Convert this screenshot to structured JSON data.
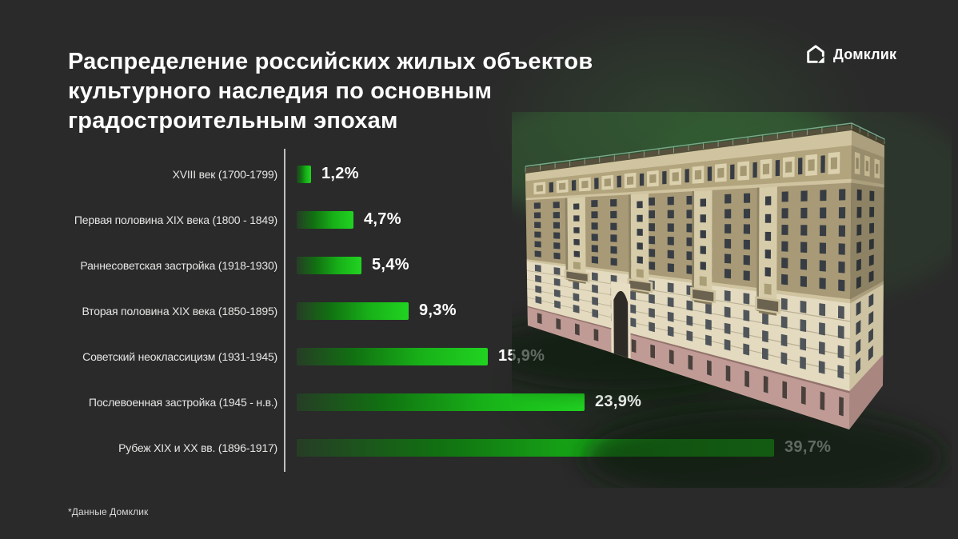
{
  "header": {
    "title_lines": [
      "Распределение российских жилых объектов",
      "культурного наследия по основным",
      "градостроительным эпохам"
    ],
    "logo_text": "Домклик"
  },
  "footnote": "*Данные Домклик",
  "chart_data": {
    "type": "bar",
    "orientation": "horizontal",
    "title": "Распределение российских жилых объектов культурного наследия по основным градостроительным эпохам",
    "categories": [
      "XVIII век (1700-1799)",
      "Первая половина XIX века (1800 - 1849)",
      "Раннесоветская застройка (1918-1930)",
      "Вторая половина XIX века (1850-1895)",
      "Советский неоклассицизм (1931-1945)",
      "Послевоенная застройка (1945 - н.в.)",
      "Рубеж XIX и XX вв. (1896-1917)"
    ],
    "values": [
      1.2,
      4.7,
      5.4,
      9.3,
      15.9,
      23.9,
      39.7
    ],
    "value_labels": [
      "1,2%",
      "4,7%",
      "5,4%",
      "9,3%",
      "15,9%",
      "23,9%",
      "39,7%"
    ],
    "xlim": [
      0,
      40
    ],
    "grid": false,
    "legend": false,
    "bar_gradient": [
      "#263d26",
      "#117111",
      "#18b118",
      "#21d321"
    ],
    "axis_line_color": "#bfbfbf",
    "label_color": "#e6e6e4",
    "value_color": "#ffffff",
    "source_note": "*Данные Домклик"
  },
  "colors": {
    "background": "#2a2a2a",
    "accent_green": "#21d321",
    "title_text": "#ffffff"
  },
  "illustration": {
    "name": "stalinist-apartment-building-3d",
    "palette": {
      "facade_tan": "#a89a76",
      "cornice_cream": "#cfc49f",
      "frieze_tan": "#b2a57e",
      "medallion_light": "#dbd1ae",
      "medallion_inner": "#a49872",
      "window_dark": "#383d44",
      "lower_cream": "#e3dabf",
      "lower_window": "#50555a",
      "base_pink": "#c09b95",
      "base_window": "#4a403c",
      "bay_cream": "#d6cca9",
      "side_tan": "#8d8263",
      "side_lower": "#cdc2a2",
      "side_pink": "#a98680",
      "arch_dark": "#2e2a26",
      "roof_railing": "#7fae92",
      "glow_green": "#3c8f3c",
      "ground_shadow": "#0a1a0a"
    }
  }
}
